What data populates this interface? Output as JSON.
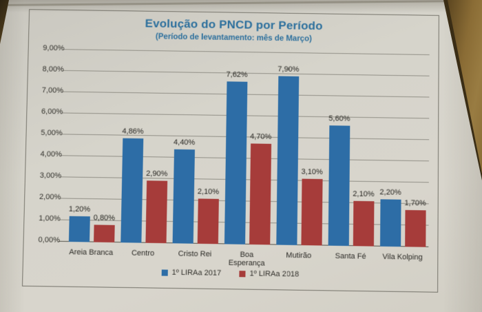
{
  "photo": {
    "paper_color": "#d6d4cb",
    "wood_color": "#8a6c35",
    "wood_dark_color": "#3a2d15",
    "frame_border_color": "#75736a"
  },
  "chart_data": {
    "type": "bar",
    "title": "Evolução do PNCD por Período",
    "subtitle": "(Período de levantamento: mês de Março)",
    "title_color": "#2a6e9c",
    "categories": [
      "Areia Branca",
      "Centro",
      "Cristo Rei",
      "Boa Esperança",
      "Mutirão",
      "Santa Fé",
      "Vila Kolping"
    ],
    "series": [
      {
        "name": "1º LIRAa 2017",
        "color": "#2d6da6",
        "values": [
          1.2,
          4.86,
          4.4,
          7.62,
          7.9,
          5.6,
          2.2
        ],
        "labels": [
          "1,20%",
          "4,86%",
          "4,40%",
          "7,62%",
          "7,90%",
          "5,60%",
          "2,20%"
        ]
      },
      {
        "name": "1º LIRAa 2018",
        "color": "#a63c3a",
        "values": [
          0.8,
          2.9,
          2.1,
          4.7,
          3.1,
          2.1,
          1.7
        ],
        "labels": [
          "0,80%",
          "2,90%",
          "2,10%",
          "4,70%",
          "3,10%",
          "2,10%",
          "1,70%"
        ]
      }
    ],
    "y_ticks": [
      "0,00%",
      "1,00%",
      "2,00%",
      "3,00%",
      "4,00%",
      "5,00%",
      "6,00%",
      "7,00%",
      "8,00%",
      "9,00%"
    ],
    "ylim": [
      0,
      9
    ],
    "y_step": 1,
    "grid": true,
    "legend_position": "bottom"
  }
}
